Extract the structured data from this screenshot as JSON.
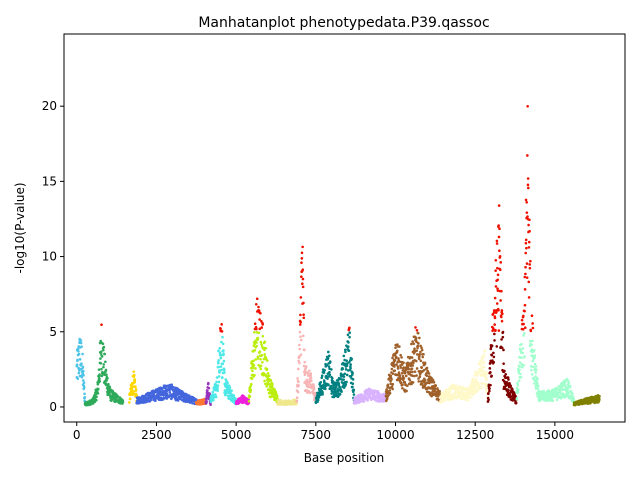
{
  "chart_data": {
    "type": "scatter",
    "title": "Manhatanplot phenotypedata.P39.qassoc",
    "xlabel": "Base position",
    "ylabel": "-log10(P-value)",
    "xlim": [
      -400,
      17200
    ],
    "ylim": [
      -1.0,
      24.8
    ],
    "xticks": [
      0,
      2500,
      5000,
      7500,
      10000,
      12500,
      15000
    ],
    "xtick_labels": [
      "0",
      "2500",
      "5000",
      "7500",
      "10000",
      "12500",
      "15000"
    ],
    "yticks": [
      0,
      5,
      10,
      15,
      20
    ],
    "ytick_labels": [
      "0",
      "5",
      "10",
      "15",
      "20"
    ],
    "grid": false,
    "significance_threshold": 5,
    "highlight_color": "#ee1100",
    "segments": [
      {
        "color": "#4dc3e8",
        "x0": 0,
        "x1": 260,
        "profile": [
          [
            0,
            3.5
          ],
          [
            80,
            5.0
          ],
          [
            160,
            4.5
          ],
          [
            260,
            0.6
          ]
        ]
      },
      {
        "color": "#2eaa5a",
        "x0": 260,
        "x1": 1450,
        "profile": [
          [
            260,
            0.3
          ],
          [
            500,
            0.5
          ],
          [
            650,
            1.5
          ],
          [
            780,
            6.0
          ],
          [
            900,
            3.0
          ],
          [
            1050,
            1.2
          ],
          [
            1450,
            0.5
          ]
        ]
      },
      {
        "color": "#ffd700",
        "x0": 1650,
        "x1": 1880,
        "profile": [
          [
            1650,
            0.8
          ],
          [
            1780,
            2.5
          ],
          [
            1880,
            1.0
          ]
        ]
      },
      {
        "color": "#4466dd",
        "x0": 1880,
        "x1": 3800,
        "profile": [
          [
            1880,
            0.6
          ],
          [
            2500,
            1.2
          ],
          [
            2900,
            1.6
          ],
          [
            3100,
            1.3
          ],
          [
            3500,
            0.8
          ],
          [
            3800,
            0.5
          ]
        ]
      },
      {
        "color": "#ff7733",
        "x0": 3750,
        "x1": 4050,
        "profile": [
          [
            3750,
            0.4
          ],
          [
            4050,
            0.6
          ]
        ]
      },
      {
        "color": "#9933bb",
        "x0": 4050,
        "x1": 4200,
        "profile": [
          [
            4050,
            0.5
          ],
          [
            4120,
            1.8
          ],
          [
            4200,
            0.4
          ]
        ]
      },
      {
        "color": "#4de8e8",
        "x0": 4200,
        "x1": 5000,
        "profile": [
          [
            4200,
            0.6
          ],
          [
            4400,
            2.0
          ],
          [
            4520,
            7.0
          ],
          [
            4650,
            2.0
          ],
          [
            5000,
            0.5
          ]
        ]
      },
      {
        "color": "#ee22dd",
        "x0": 5000,
        "x1": 5400,
        "profile": [
          [
            5000,
            0.4
          ],
          [
            5200,
            0.8
          ],
          [
            5400,
            0.5
          ]
        ]
      },
      {
        "color": "#bbee11",
        "x0": 5400,
        "x1": 6300,
        "profile": [
          [
            5400,
            0.8
          ],
          [
            5650,
            7.5
          ],
          [
            5850,
            5.5
          ],
          [
            6050,
            2.0
          ],
          [
            6300,
            0.8
          ]
        ]
      },
      {
        "color": "#f0e68c",
        "x0": 6300,
        "x1": 6900,
        "profile": [
          [
            6300,
            0.5
          ],
          [
            6600,
            0.4
          ],
          [
            6900,
            0.5
          ]
        ]
      },
      {
        "color": "#f7b5b5",
        "x0": 6900,
        "x1": 7500,
        "profile": [
          [
            6900,
            0.6
          ],
          [
            7000,
            5.5
          ],
          [
            7070,
            13.5
          ],
          [
            7150,
            3.0
          ],
          [
            7350,
            2.2
          ],
          [
            7500,
            1.0
          ]
        ]
      },
      {
        "color": "#008080",
        "x0": 7500,
        "x1": 8700,
        "profile": [
          [
            7500,
            0.5
          ],
          [
            7900,
            4.0
          ],
          [
            8050,
            1.5
          ],
          [
            8250,
            2.0
          ],
          [
            8550,
            5.5
          ],
          [
            8700,
            1.0
          ]
        ]
      },
      {
        "color": "#d9b3ff",
        "x0": 8700,
        "x1": 9700,
        "profile": [
          [
            8700,
            0.6
          ],
          [
            9200,
            1.3
          ],
          [
            9700,
            0.8
          ]
        ]
      },
      {
        "color": "#a0602a",
        "x0": 9700,
        "x1": 11400,
        "profile": [
          [
            9700,
            1.0
          ],
          [
            10050,
            5.0
          ],
          [
            10300,
            2.5
          ],
          [
            10650,
            5.5
          ],
          [
            11000,
            2.5
          ],
          [
            11400,
            1.0
          ]
        ]
      },
      {
        "color": "#fff8c8",
        "x0": 11400,
        "x1": 12900,
        "profile": [
          [
            11400,
            0.8
          ],
          [
            11800,
            1.5
          ],
          [
            12300,
            1.2
          ],
          [
            12800,
            4.0
          ],
          [
            12900,
            1.0
          ]
        ]
      },
      {
        "color": "#800000",
        "x0": 12900,
        "x1": 13800,
        "profile": [
          [
            12900,
            0.5
          ],
          [
            13250,
            14.0
          ],
          [
            13400,
            3.0
          ],
          [
            13600,
            1.5
          ],
          [
            13800,
            0.6
          ]
        ]
      },
      {
        "color": "#a0ffcc",
        "x0": 13800,
        "x1": 15600,
        "profile": [
          [
            13800,
            1.0
          ],
          [
            14050,
            8.0
          ],
          [
            14150,
            22.0
          ],
          [
            14250,
            7.0
          ],
          [
            14500,
            1.0
          ],
          [
            15000,
            1.2
          ],
          [
            15400,
            2.0
          ],
          [
            15600,
            0.5
          ]
        ]
      },
      {
        "color": "#808000",
        "x0": 15600,
        "x1": 16400,
        "profile": [
          [
            15600,
            0.3
          ],
          [
            16000,
            0.6
          ],
          [
            16400,
            0.8
          ]
        ]
      }
    ]
  }
}
